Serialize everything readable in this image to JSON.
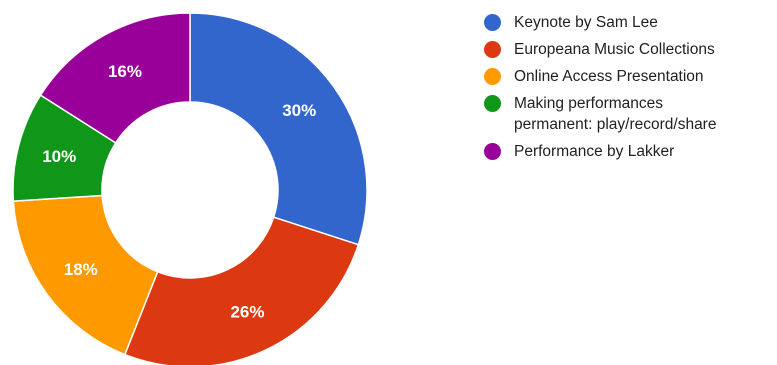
{
  "chart_data": {
    "type": "pie",
    "donut": true,
    "title": "",
    "legend_position": "right",
    "slices": [
      {
        "label": "Keynote by Sam Lee",
        "value": 30,
        "display": "30%",
        "color": "#3366cc"
      },
      {
        "label": "Europeana Music Collections",
        "value": 26,
        "display": "26%",
        "color": "#dc3912"
      },
      {
        "label": "Online Access Presentation",
        "value": 18,
        "display": "18%",
        "color": "#ff9900"
      },
      {
        "label": "Making performances\npermanent: play/record/share",
        "value": 10,
        "display": "10%",
        "color": "#109618"
      },
      {
        "label": "Performance by Lakker",
        "value": 16,
        "display": "16%",
        "color": "#990099"
      }
    ]
  }
}
